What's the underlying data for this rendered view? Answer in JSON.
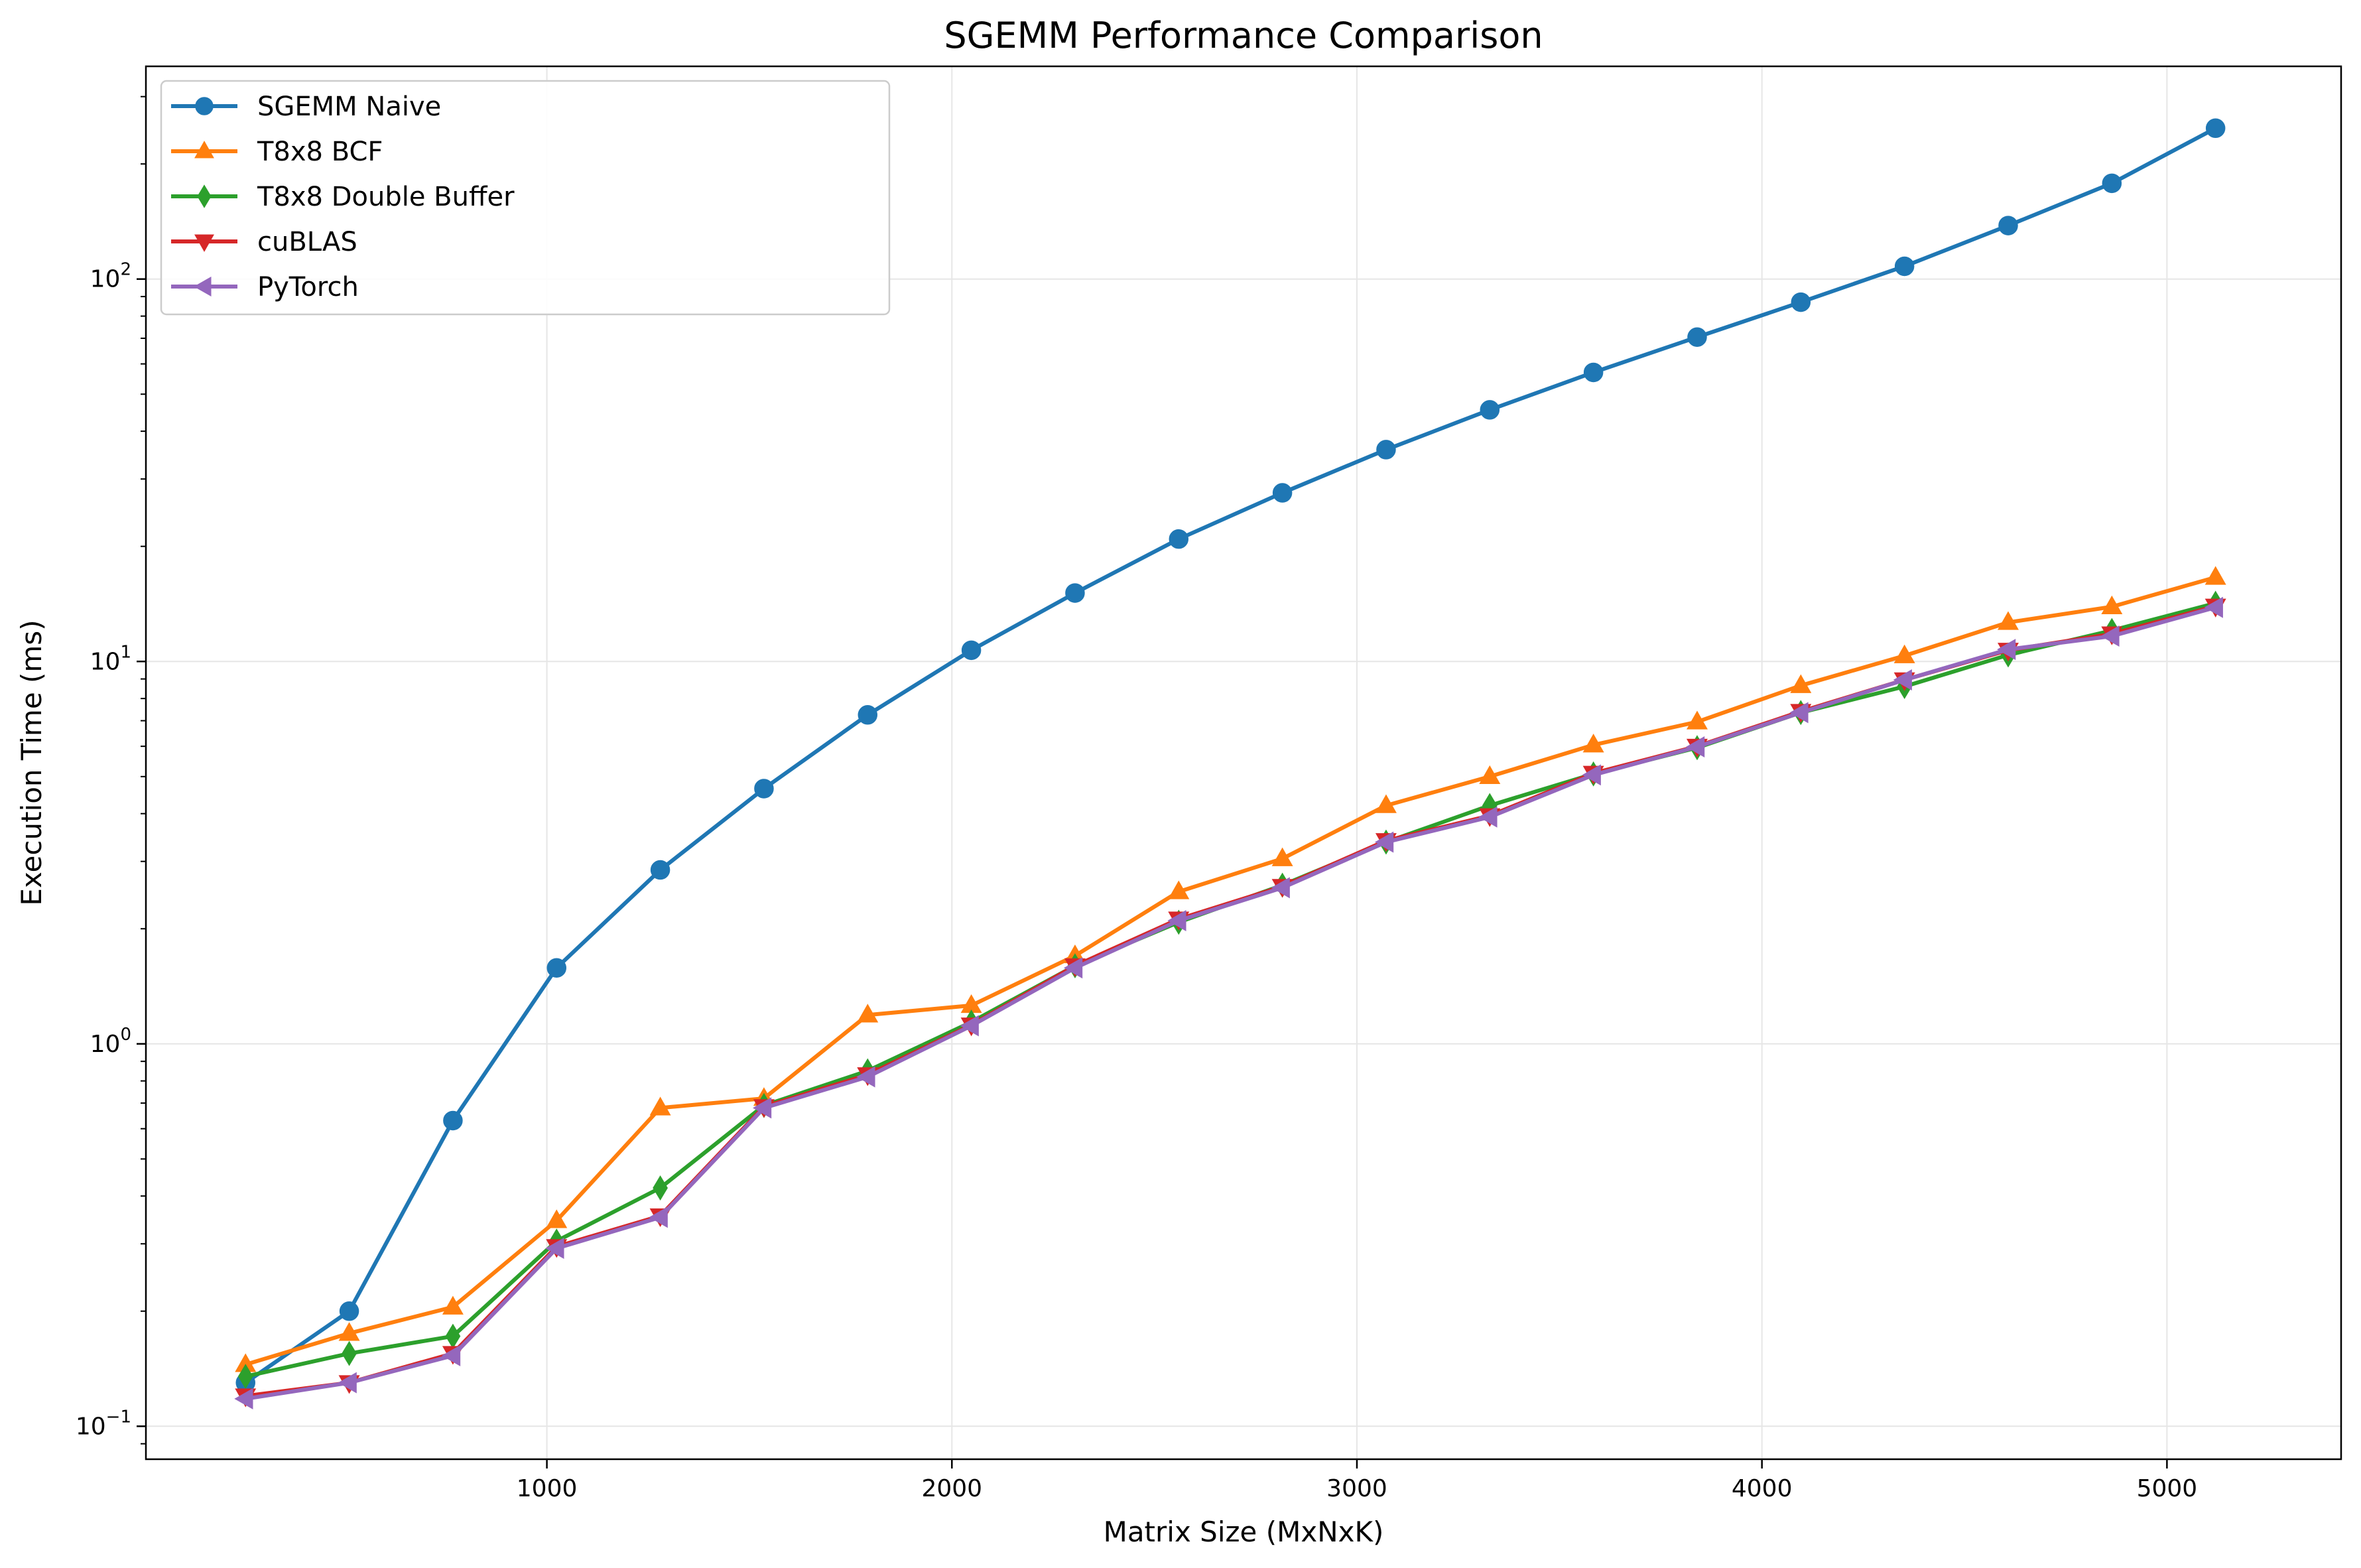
{
  "chart_data": {
    "type": "line",
    "title": "SGEMM Performance Comparison",
    "xlabel": "Matrix Size (MxNxK)",
    "ylabel": "Execution Time (ms)",
    "yscale": "log",
    "xlim": [
      10,
      5430
    ],
    "ylim": [
      0.082,
      360
    ],
    "grid": true,
    "legend_position": "top-left",
    "x_ticks": [
      1000,
      2000,
      3000,
      4000,
      5000
    ],
    "y_ticks": [
      {
        "value": 0.1,
        "base": "10",
        "exp": "−1"
      },
      {
        "value": 1,
        "base": "10",
        "exp": "0"
      },
      {
        "value": 10,
        "base": "10",
        "exp": "1"
      },
      {
        "value": 100,
        "base": "10",
        "exp": "2"
      }
    ],
    "x": [
      256,
      512,
      768,
      1024,
      1280,
      1536,
      1792,
      2048,
      2304,
      2560,
      2816,
      3072,
      3328,
      3584,
      3840,
      4096,
      4352,
      4608,
      4864,
      5120
    ],
    "series": [
      {
        "name": "SGEMM Naive",
        "color": "#1f77b4",
        "marker": "circle",
        "values": [
          0.13,
          0.2,
          0.63,
          1.58,
          2.85,
          4.65,
          7.25,
          10.7,
          15.1,
          20.9,
          27.6,
          35.8,
          45.5,
          57.0,
          70.5,
          87.0,
          108.0,
          138.0,
          178.0,
          248.0
        ]
      },
      {
        "name": "T8x8 BCF",
        "color": "#ff7f0e",
        "marker": "triangle-up",
        "values": [
          0.145,
          0.175,
          0.205,
          0.345,
          0.68,
          0.72,
          1.19,
          1.26,
          1.7,
          2.5,
          3.05,
          4.2,
          5.0,
          6.05,
          6.95,
          8.65,
          10.35,
          12.65,
          13.9,
          16.6
        ]
      },
      {
        "name": "T8x8 Double Buffer",
        "color": "#2ca02c",
        "marker": "diamond",
        "values": [
          0.135,
          0.155,
          0.172,
          0.305,
          0.42,
          0.69,
          0.85,
          1.14,
          1.6,
          2.08,
          2.6,
          3.37,
          4.2,
          5.08,
          5.95,
          7.35,
          8.6,
          10.4,
          12.05,
          14.2
        ]
      },
      {
        "name": "cuBLAS",
        "color": "#d62728",
        "marker": "triangle-down",
        "values": [
          0.12,
          0.13,
          0.155,
          0.295,
          0.355,
          0.685,
          0.83,
          1.12,
          1.6,
          2.12,
          2.58,
          3.4,
          3.95,
          5.1,
          6.0,
          7.4,
          8.95,
          10.7,
          11.8,
          13.95
        ]
      },
      {
        "name": "PyTorch",
        "color": "#9467bd",
        "marker": "triangle-left",
        "values": [
          0.118,
          0.13,
          0.153,
          0.292,
          0.352,
          0.68,
          0.82,
          1.115,
          1.58,
          2.1,
          2.56,
          3.37,
          3.92,
          5.05,
          5.98,
          7.35,
          8.95,
          10.75,
          11.65,
          13.85
        ]
      }
    ]
  }
}
